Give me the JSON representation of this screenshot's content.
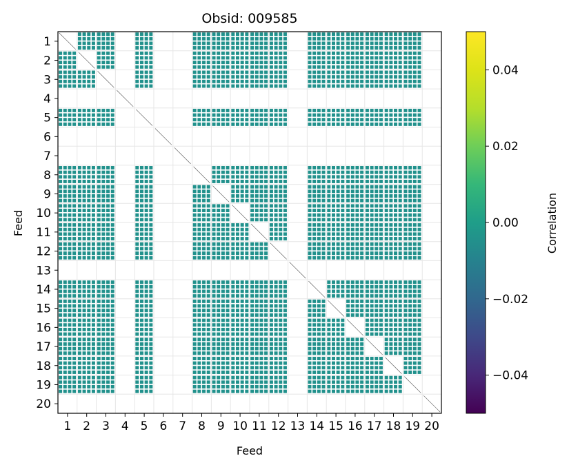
{
  "chart_data": {
    "type": "heatmap",
    "title": "Obsid: 009585",
    "xlabel": "Feed",
    "ylabel": "Feed",
    "colorbar_label": "Correlation",
    "feeds": [
      1,
      2,
      3,
      4,
      5,
      6,
      7,
      8,
      9,
      10,
      11,
      12,
      13,
      14,
      15,
      16,
      17,
      18,
      19,
      20
    ],
    "x_tick_labels": [
      "1",
      "2",
      "3",
      "4",
      "5",
      "6",
      "7",
      "8",
      "9",
      "10",
      "11",
      "12",
      "13",
      "14",
      "15",
      "16",
      "17",
      "18",
      "19",
      "20"
    ],
    "y_tick_labels": [
      "1",
      "2",
      "3",
      "4",
      "5",
      "6",
      "7",
      "8",
      "9",
      "10",
      "11",
      "12",
      "13",
      "14",
      "15",
      "16",
      "17",
      "18",
      "19",
      "20"
    ],
    "colorbar_ticks": [
      0.04,
      0.02,
      0.0,
      -0.02,
      -0.04
    ],
    "colorbar_tick_labels": [
      "0.04",
      "0.02",
      "0.00",
      "−0.02",
      "−0.04"
    ],
    "clim": [
      -0.05,
      0.05
    ],
    "colormap": "viridis",
    "filled_value": 0.0,
    "filled_color": "#21918c",
    "active_feeds": [
      1,
      2,
      3,
      5,
      8,
      9,
      10,
      11,
      12,
      14,
      15,
      16,
      17,
      18,
      19
    ],
    "inactive_feeds": [
      4,
      6,
      7,
      13,
      20
    ],
    "grid": true
  },
  "colors": {
    "viridis_top": "#fde725",
    "viridis_mid": "#21918c",
    "viridis_bottom": "#440154",
    "grid": "#e6e6e6",
    "axes": "#000000"
  }
}
